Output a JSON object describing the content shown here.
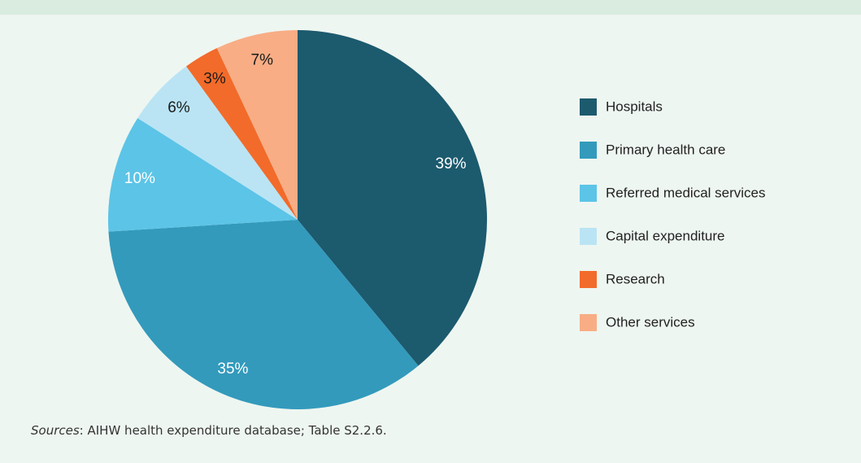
{
  "chart_data": {
    "type": "pie",
    "categories": [
      "Hospitals",
      "Primary health care",
      "Referred medical services",
      "Capital expenditure",
      "Research",
      "Other services"
    ],
    "values": [
      39,
      35,
      10,
      6,
      3,
      7
    ],
    "value_labels": [
      "39%",
      "35%",
      "10%",
      "6%",
      "3%",
      "7%"
    ],
    "colors": [
      "#1c5a6e",
      "#339abc",
      "#5cc4e7",
      "#bae4f4",
      "#f26b2a",
      "#f8ad85"
    ],
    "label_colors": [
      "#ffffff",
      "#ffffff",
      "#ffffff",
      "#1a1a1a",
      "#1a1a1a",
      "#1a1a1a"
    ],
    "legend": "right",
    "source_label": "Sources",
    "source": ": AIHW health expenditure database; Table S2.2.6."
  }
}
